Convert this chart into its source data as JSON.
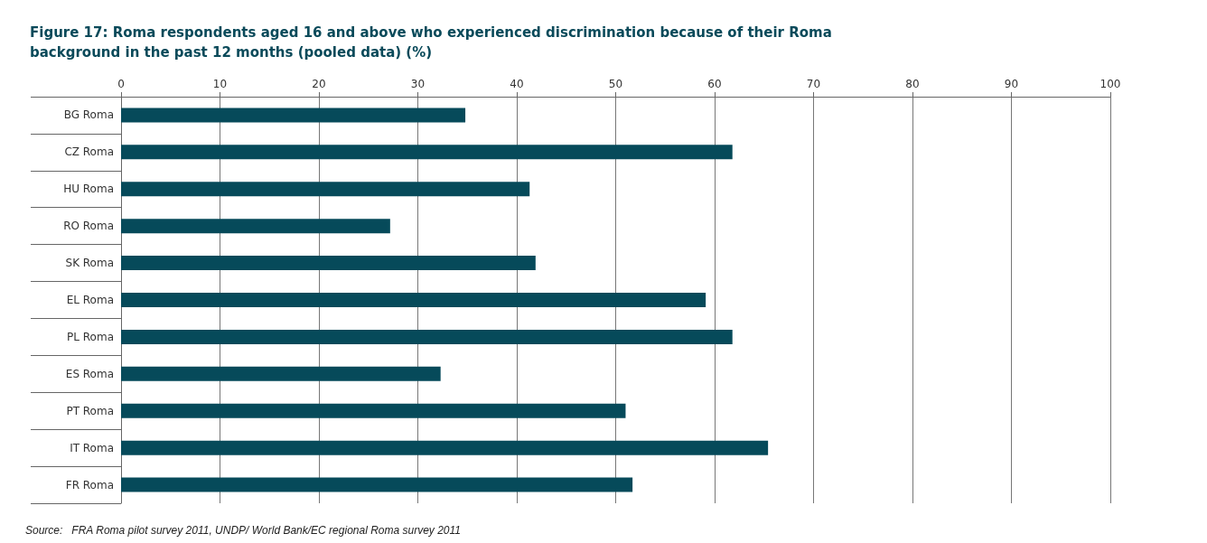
{
  "chart_data": {
    "type": "bar",
    "orientation": "horizontal",
    "title": "Figure 17: Roma respondents aged 16 and above who experienced discrimination because of their Roma\nbackground in the past 12 months (pooled data) (%)",
    "categories": [
      "BG Roma",
      "CZ Roma",
      "HU Roma",
      "RO Roma",
      "SK Roma",
      "EL Roma",
      "PL Roma",
      "ES Roma",
      "PT Roma",
      "IT Roma",
      "FR Roma"
    ],
    "values": [
      34.8,
      61.8,
      41.3,
      27.2,
      41.9,
      59.1,
      61.8,
      32.3,
      51.0,
      65.4,
      51.7
    ],
    "color": "#064a5a",
    "xlim": [
      0,
      100
    ],
    "xticks": [
      0,
      10,
      20,
      30,
      40,
      50,
      60,
      70,
      80,
      90,
      100
    ],
    "grid": "x",
    "annotations": [
      "Source:   FRA Roma pilot survey 2011, UNDP/ World Bank/EC regional Roma survey 2011"
    ]
  }
}
